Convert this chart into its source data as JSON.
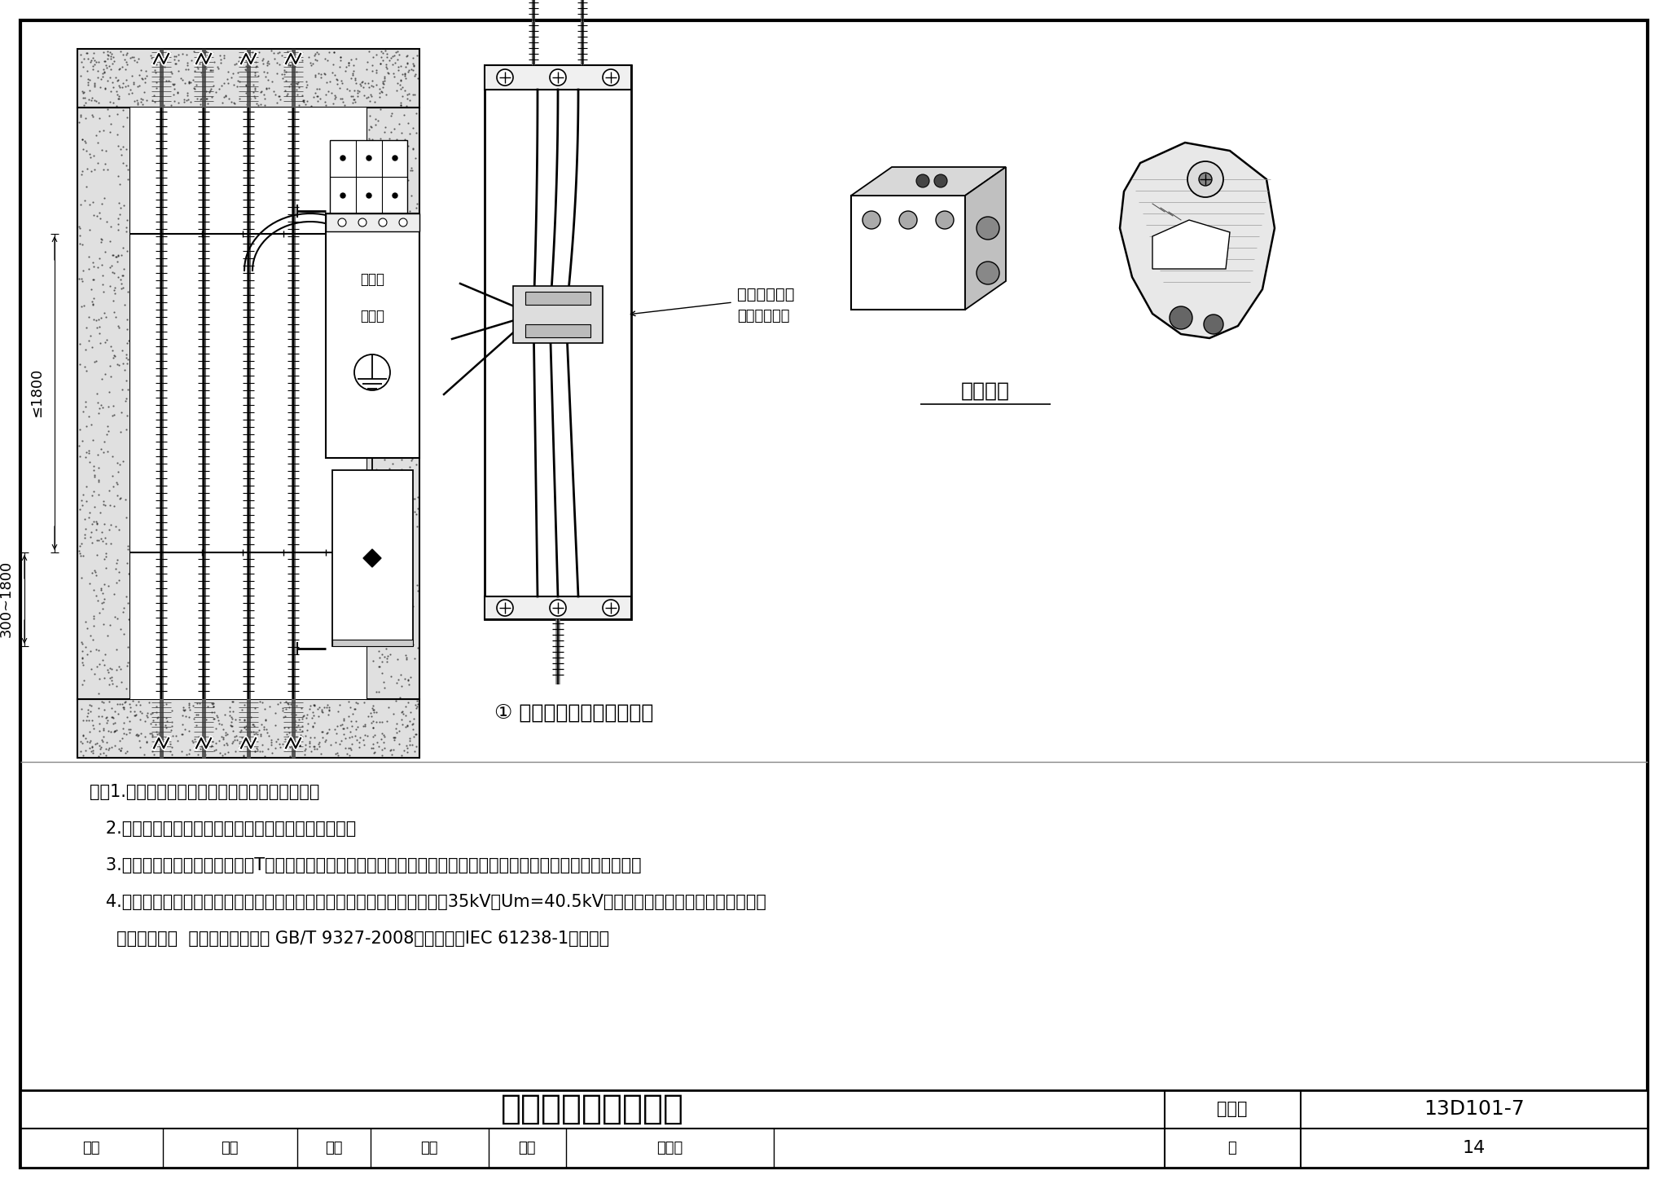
{
  "title_main": "铝合金电缆分支方式",
  "title_sub": "图集号",
  "title_num": "13D101-7",
  "page_label": "页",
  "page_num": "14",
  "review_label": "审核",
  "review_name": "孙兰",
  "check_label": "校对",
  "check_name": "姜华",
  "design_label": "设计",
  "design_name": "胡大伟",
  "diagram_label": "① 紧凑型分线箱内部安装图",
  "branch_terminal_label": "分支端子",
  "connector_label": "分支连接金具",
  "connector_sub": "（带保护罩）",
  "note1": "注：1.本图为电气竖井内设备布置，供设计参考。",
  "note2": "   2.电缆穿楼板套管采用非金属材料，并做好防火封堵。",
  "note3": "   3.铝合金电缆分支除采用传统的T接箱外，也可采用分支端子等分支连接金具，但应做好电缆阻燃性能和接地的恢复。",
  "note4": "   4.连接金具（直通连接金具、分支连接金具、接线端子）应满足《额定电压35kV（Um=40.5kV）及以下电力电缆导体用压接式和机",
  "note5": "     械式连接金具  试验方法和要求》 GB/T 9327-2008（修改采用IEC 61238-1标准）。",
  "dim1": "≤1800",
  "dim2": "300~1800",
  "box_label1": "紧凑型",
  "box_label2": "分线箱"
}
